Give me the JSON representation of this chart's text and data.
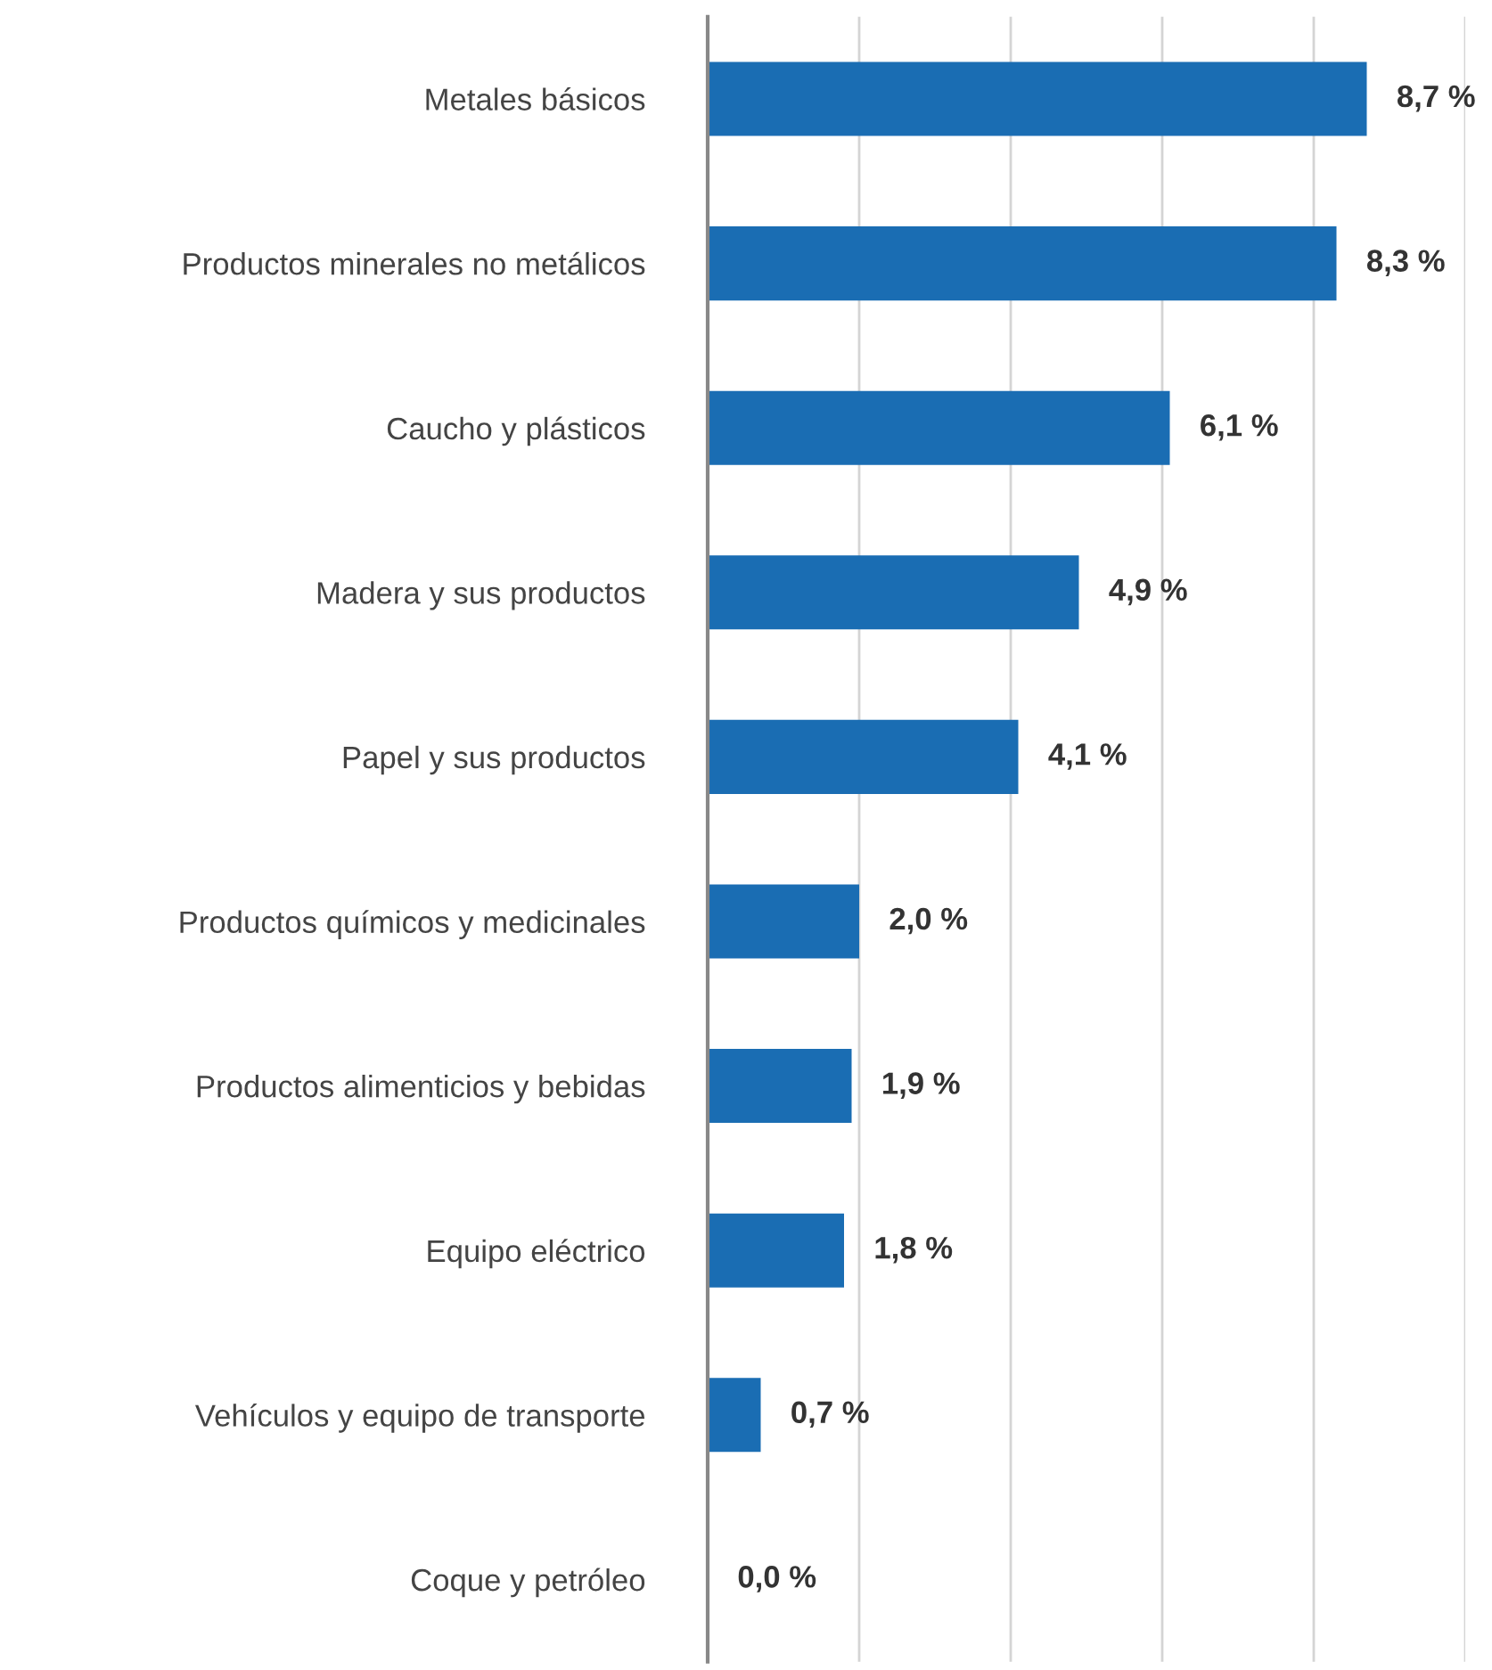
{
  "chart_data": {
    "type": "bar",
    "orientation": "horizontal",
    "categories": [
      "Metales básicos",
      "Productos minerales no metálicos",
      "Caucho y plásticos",
      "Madera y sus productos",
      "Papel y sus productos",
      "Productos químicos y medicinales",
      "Productos alimenticios y bebidas",
      "Equipo eléctrico",
      "Vehículos y equipo de transporte",
      "Coque y petróleo"
    ],
    "values": [
      8.7,
      8.3,
      6.1,
      4.9,
      4.1,
      2.0,
      1.9,
      1.8,
      0.7,
      0.0
    ],
    "value_labels": [
      "8,7 %",
      "8,3 %",
      "6,1 %",
      "4,9 %",
      "4,1 %",
      "2,0 %",
      "1,9 %",
      "1,8 %",
      "0,7 %",
      "0,0 %"
    ],
    "color": "#1a6db3",
    "xlim": [
      0,
      10
    ],
    "xticks": [
      {
        "value": 0,
        "label": null
      },
      {
        "value": 2,
        "label": null
      },
      {
        "value": 4,
        "label": null
      },
      {
        "value": 6,
        "label": null
      },
      {
        "value": 8,
        "label": null
      },
      {
        "value": 10,
        "label": null
      }
    ],
    "tick_labels": "y",
    "grid": "x",
    "legend": false
  }
}
